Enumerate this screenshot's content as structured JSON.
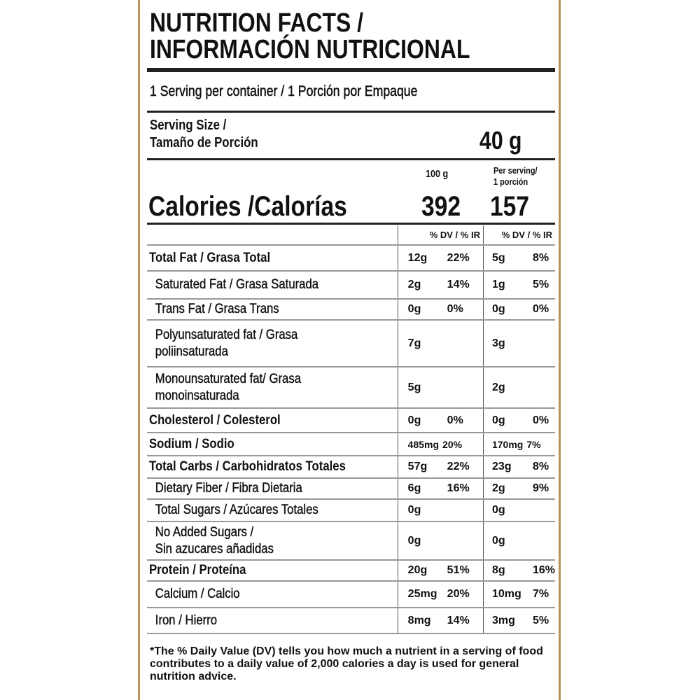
{
  "title_line1": "NUTRITION FACTS /",
  "title_line2": "INFORMACIÓN NUTRICIONAL",
  "servings_per_container": "1 Serving per container / 1 Porción por Empaque",
  "serving_size_label_1": "Serving Size /",
  "serving_size_label_2": "Tamaño de Porción",
  "serving_size_value": "40 g",
  "col_100g": "100 g",
  "col_per_serving_1": "Per serving/",
  "col_per_serving_2": "1 porción",
  "calories_label": "Calories /Calorías",
  "calories_100g": "392",
  "calories_serving": "157",
  "dv_header": "% DV / % IR",
  "rows": [
    {
      "label": "Total Fat / Grasa Total",
      "a1": "12g",
      "p1": "22%",
      "a2": "5g",
      "p2": "8%"
    },
    {
      "label": "Saturated Fat / Grasa Saturada",
      "a1": "2g",
      "p1": "14%",
      "a2": "1g",
      "p2": "5%"
    },
    {
      "label": "Trans Fat / Grasa Trans",
      "a1": "0g",
      "p1": "0%",
      "a2": "0g",
      "p2": "0%"
    },
    {
      "label": "Polyunsaturated fat / Grasa",
      "label2": "poliinsaturada",
      "a1": "7g",
      "p1": "",
      "a2": "3g",
      "p2": ""
    },
    {
      "label": "Monounsaturated fat/ Grasa",
      "label2": "monoinsaturada",
      "a1": "5g",
      "p1": "",
      "a2": "2g",
      "p2": ""
    },
    {
      "label": "Cholesterol / Colesterol",
      "a1": "0g",
      "p1": "0%",
      "a2": "0g",
      "p2": "0%"
    },
    {
      "label": "Sodium / Sodio",
      "a1": "485mg",
      "p1": "20%",
      "a2": "170mg",
      "p2": "7%"
    },
    {
      "label": "Total Carbs / Carbohidratos Totales",
      "a1": "57g",
      "p1": "22%",
      "a2": "23g",
      "p2": "8%"
    },
    {
      "label": "Dietary Fiber / Fibra Dietaria",
      "a1": "6g",
      "p1": "16%",
      "a2": "2g",
      "p2": "9%"
    },
    {
      "label": "Total Sugars / Azúcares Totales",
      "a1": "0g",
      "p1": "",
      "a2": "0g",
      "p2": ""
    },
    {
      "label": "No Added Sugars /",
      "label2": "Sin azucares añadidas",
      "a1": "0g",
      "p1": "",
      "a2": "0g",
      "p2": ""
    },
    {
      "label": "Protein / Proteína",
      "a1": "20g",
      "p1": "51%",
      "a2": "8g",
      "p2": "16%"
    },
    {
      "label": "Calcium / Calcio",
      "a1": "25mg",
      "p1": "20%",
      "a2": "10mg",
      "p2": "7%"
    },
    {
      "label": "Iron / Hierro",
      "a1": "8mg",
      "p1": "14%",
      "a2": "3mg",
      "p2": "5%"
    }
  ],
  "footnote": "*The % Daily Value (DV) tells you how much a nutrient in a serving of food contributes to a daily value of 2,000 calories a day is used for general nutrition advice."
}
